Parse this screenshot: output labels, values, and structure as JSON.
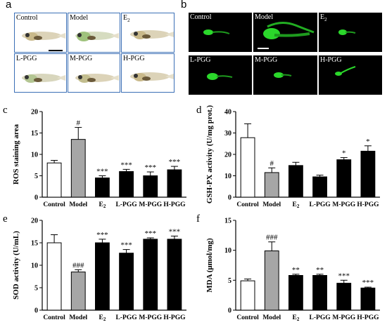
{
  "panel_a": {
    "letter": "a",
    "labels": [
      "Control",
      "Model",
      "E",
      "L-PGG",
      "M-PGG",
      "H-PGG"
    ]
  },
  "panel_b": {
    "letter": "b",
    "labels": [
      "Control",
      "Model",
      "E",
      "L-PGG",
      "M-PGG",
      "H-PGG"
    ]
  },
  "colors": {
    "control": "#ffffff",
    "model": "#a6a6a6",
    "treated": "#000000",
    "fish_border": "#3b6fb6",
    "fluorescence": "#2bd82b"
  },
  "chart_data": [
    {
      "letter": "c",
      "type": "bar",
      "categories": [
        "Control",
        "Model",
        "E2",
        "L-PGG",
        "M-PGG",
        "H-PGG"
      ],
      "values": [
        8.0,
        13.5,
        4.5,
        6.0,
        5.0,
        6.4
      ],
      "errors": [
        0.6,
        2.8,
        0.5,
        0.5,
        0.9,
        0.8
      ],
      "significance": [
        "",
        "#",
        "***",
        "***",
        "***",
        "***"
      ],
      "ylabel": "ROS staining area",
      "ylim": [
        0,
        20
      ],
      "yticks": [
        0,
        5,
        10,
        15,
        20
      ]
    },
    {
      "letter": "d",
      "type": "bar",
      "categories": [
        "Control",
        "Model",
        "E2",
        "L-PGG",
        "M-PGG",
        "H-PGG"
      ],
      "values": [
        27.8,
        11.5,
        14.8,
        9.5,
        17.5,
        21.5
      ],
      "errors": [
        6.5,
        2.2,
        1.5,
        0.8,
        1.0,
        2.5
      ],
      "significance": [
        "",
        "#",
        "",
        "",
        "*",
        "*"
      ],
      "ylabel": "GSH-PX activity (U/mg prot.)",
      "ylim": [
        0,
        40
      ],
      "yticks": [
        0,
        10,
        20,
        30,
        40
      ]
    },
    {
      "letter": "e",
      "type": "bar",
      "categories": [
        "Control",
        "Model",
        "E2",
        "L-PGG",
        "M-PGG",
        "H-PGG"
      ],
      "values": [
        15.0,
        8.5,
        15.0,
        12.7,
        15.8,
        15.8
      ],
      "errors": [
        1.8,
        0.5,
        0.8,
        0.8,
        0.3,
        0.7
      ],
      "significance": [
        "",
        "###",
        "***",
        "***",
        "***",
        "***"
      ],
      "ylabel": "SOD activity (U/mL)",
      "ylim": [
        0,
        20
      ],
      "yticks": [
        0,
        5,
        10,
        15,
        20
      ]
    },
    {
      "letter": "f",
      "type": "bar",
      "categories": [
        "Control",
        "Model",
        "E2",
        "L-PGG",
        "M-PGG",
        "H-PGG"
      ],
      "values": [
        4.9,
        9.9,
        5.8,
        5.8,
        4.5,
        3.7
      ],
      "errors": [
        0.3,
        1.5,
        0.2,
        0.2,
        0.5,
        0.15
      ],
      "significance": [
        "",
        "###",
        "**",
        "**",
        "***",
        "***"
      ],
      "ylabel": "MDA (μmol/mg)",
      "ylim": [
        0,
        15
      ],
      "yticks": [
        0,
        5,
        10,
        15
      ]
    }
  ]
}
